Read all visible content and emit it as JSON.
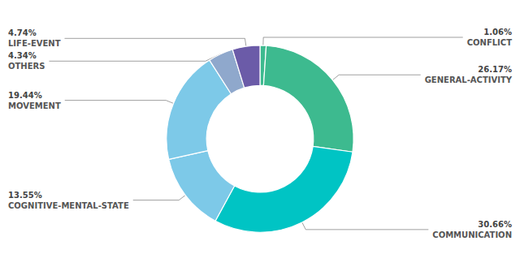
{
  "chart_data": {
    "type": "donut",
    "categories": [
      "CONFLICT",
      "GENERAL-ACTIVITY",
      "COMMUNICATION",
      "COGNITIVE-MENTAL-STATE",
      "MOVEMENT",
      "OTHERS",
      "LIFE-EVENT"
    ],
    "values": [
      1.06,
      26.17,
      30.66,
      13.55,
      19.44,
      4.34,
      4.74
    ],
    "value_labels": [
      "1.06%",
      "26.17%",
      "30.66%",
      "13.55%",
      "19.44%",
      "4.34%",
      "4.74%"
    ],
    "colors": [
      "#3dba8f",
      "#3dba8f",
      "#00c4c4",
      "#7dc9e8",
      "#7dc9e8",
      "#8fa8cc",
      "#6b5ba8"
    ],
    "data_labels": true
  }
}
